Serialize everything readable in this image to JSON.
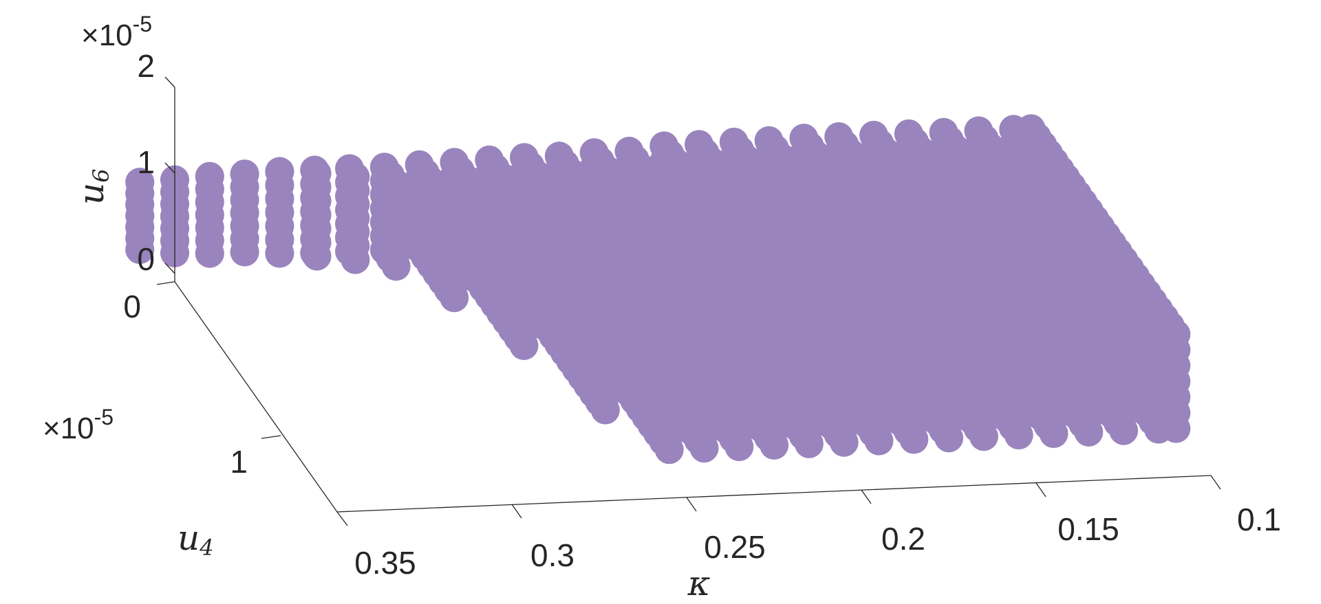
{
  "chart_data": {
    "type": "scatter",
    "title": "",
    "marker_color": "#9a84bd",
    "axes": {
      "x": {
        "label": "κ",
        "ticks": [
          "0.35",
          "0.3",
          "0.25",
          "0.2",
          "0.15",
          "0.1"
        ],
        "range": [
          0.1,
          0.35
        ]
      },
      "y": {
        "label": "u",
        "label_sub": "4",
        "ticks": [
          "0",
          "1"
        ],
        "multiplier": "×10",
        "multiplier_exp": "-5",
        "range": [
          0,
          1.4
        ]
      },
      "z": {
        "label": "u",
        "label_sub": "6",
        "ticks": [
          "0",
          "1",
          "2"
        ],
        "multiplier": "×10",
        "multiplier_exp": "-5",
        "range": [
          0,
          2
        ]
      }
    },
    "region": {
      "description_points": "dense grid of points over kappa 0.105-0.36 and u4 0-1.25e-5; u6 ranges approx 0.3e-5 to 1.2e-5",
      "kappa_values": [
        0.36,
        0.35,
        0.34,
        0.33,
        0.32,
        0.31,
        0.3,
        0.29,
        0.28,
        0.27,
        0.26,
        0.25,
        0.24,
        0.23,
        0.22,
        0.21,
        0.2,
        0.19,
        0.18,
        0.17,
        0.16,
        0.15,
        0.14,
        0.13,
        0.12,
        0.11,
        0.105
      ],
      "top_edge_u6_e5": [
        1.05,
        1.06,
        1.08,
        1.09,
        1.1,
        1.1,
        1.1,
        1.1,
        1.11,
        1.12,
        1.13,
        1.14,
        1.14,
        1.16,
        1.16,
        1.2,
        1.2,
        1.21,
        1.21,
        1.22,
        1.22,
        1.22,
        1.22,
        1.22,
        1.22,
        1.22,
        1.22
      ],
      "bottom_edge_u6_e5": [
        0.35,
        0.3,
        0.28,
        0.28,
        0.25,
        0.24,
        0.24,
        0.24,
        0.24,
        0.24,
        0.24,
        0.24,
        0.24,
        0.24,
        0.24,
        0.24,
        0.24,
        0.24,
        0.24,
        0.24,
        0.24,
        0.24,
        0.24,
        0.24,
        0.24,
        0.24,
        0.24
      ],
      "max_u4_e5": [
        0.0,
        0.0,
        0.0,
        0.0,
        0.0,
        0.02,
        0.05,
        0.1,
        0.3,
        0.6,
        1.0,
        1.25,
        1.25,
        1.25,
        1.25,
        1.25,
        1.25,
        1.25,
        1.25,
        1.25,
        1.25,
        1.25,
        1.25,
        1.25,
        1.25,
        1.25,
        1.25
      ]
    }
  }
}
